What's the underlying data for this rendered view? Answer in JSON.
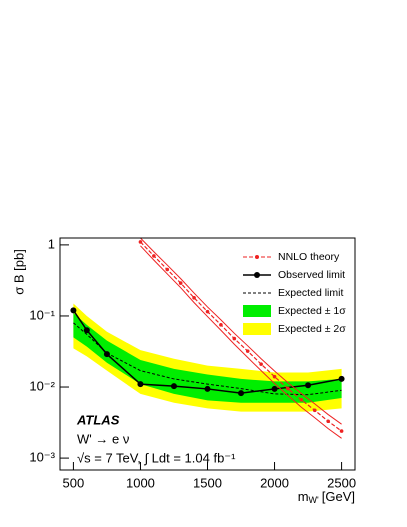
{
  "chart_data": {
    "type": "line",
    "log_y": true,
    "y_label": "σ B [pb]",
    "x_label": "m",
    "x_label_sub": "W'",
    "x_label_unit": "[GeV]",
    "xlim": [
      400,
      2600
    ],
    "xticks": [
      500,
      1000,
      1500,
      2000,
      2500
    ],
    "ylim": [
      0.00068,
      1.25
    ],
    "yticks": [
      {
        "value": 0.001,
        "label": "10⁻³"
      },
      {
        "value": 0.01,
        "label": "10⁻²"
      },
      {
        "value": 0.1,
        "label": "10⁻¹"
      },
      1
    ],
    "annotations": [
      "ATLAS",
      "W' → e ν",
      "√s = 7 TeV, ∫ Ldt = 1.04 fb⁻¹"
    ],
    "legend": "upper right",
    "x": [
      500,
      600,
      750,
      1000,
      1250,
      1500,
      1750,
      2000,
      2250,
      2500
    ],
    "bands": [
      {
        "name": "Expected ± 2σ",
        "color": "#ffff00",
        "lower": [
          0.035,
          0.027,
          0.017,
          0.008,
          0.006,
          0.005,
          0.0045,
          0.0045,
          0.0045,
          0.005
        ],
        "upper": [
          0.15,
          0.1,
          0.06,
          0.033,
          0.025,
          0.02,
          0.018,
          0.016,
          0.016,
          0.018
        ]
      },
      {
        "name": "Expected ± 1σ",
        "color": "#00ee00",
        "lower": [
          0.05,
          0.037,
          0.022,
          0.011,
          0.008,
          0.0065,
          0.006,
          0.006,
          0.006,
          0.007
        ],
        "upper": [
          0.11,
          0.075,
          0.045,
          0.024,
          0.018,
          0.015,
          0.013,
          0.012,
          0.012,
          0.013
        ]
      }
    ],
    "series": [
      {
        "name": "Expected  limit",
        "color": "#000000",
        "dashed": true,
        "markers": false,
        "values": [
          0.08,
          0.055,
          0.03,
          0.017,
          0.013,
          0.011,
          0.0095,
          0.008,
          0.0078,
          0.009
        ]
      },
      {
        "name": "Observed limit",
        "color": "#000000",
        "dashed": false,
        "markers": true,
        "values": [
          0.12,
          0.063,
          0.029,
          0.011,
          0.0103,
          0.0094,
          0.0082,
          0.0094,
          0.0106,
          0.013
        ]
      }
    ],
    "theory": {
      "name": "NNLO theory",
      "color": "#ee2222",
      "x": [
        1000,
        1100,
        1200,
        1300,
        1400,
        1500,
        1600,
        1700,
        1800,
        1900,
        2000,
        2100,
        2200,
        2300,
        2400,
        2500
      ],
      "values": [
        1.1,
        0.7,
        0.45,
        0.29,
        0.18,
        0.115,
        0.075,
        0.048,
        0.032,
        0.021,
        0.014,
        0.0095,
        0.0066,
        0.0047,
        0.0033,
        0.0024
      ],
      "upper": [
        1.25,
        0.8,
        0.52,
        0.335,
        0.21,
        0.134,
        0.088,
        0.057,
        0.038,
        0.025,
        0.0168,
        0.0115,
        0.0081,
        0.0058,
        0.0041,
        0.003
      ],
      "lower": [
        0.97,
        0.61,
        0.39,
        0.25,
        0.154,
        0.098,
        0.063,
        0.04,
        0.026,
        0.017,
        0.0112,
        0.0076,
        0.0052,
        0.0037,
        0.0026,
        0.0019
      ]
    }
  }
}
